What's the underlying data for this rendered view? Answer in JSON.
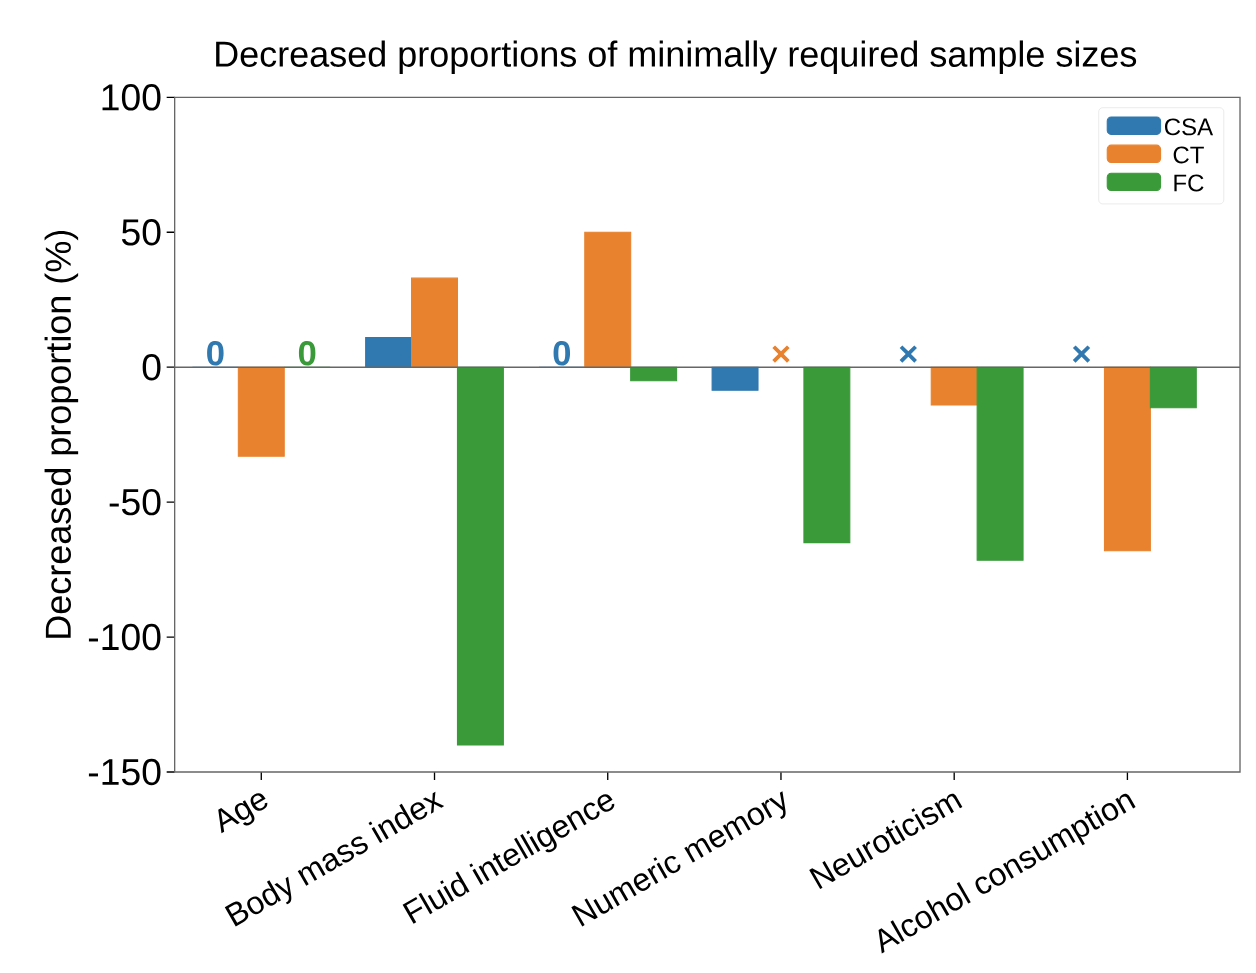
{
  "chart_data": {
    "type": "bar",
    "title": "Decreased proportions of minimally required sample sizes",
    "ylabel": "Decreased proportion (%)",
    "categories": [
      "Age",
      "Body mass index",
      "Fluid intelligence",
      "Numeric memory",
      "Neuroticism",
      "Alcohol consumption"
    ],
    "series": [
      {
        "name": "CSA",
        "color": "#2f78b0",
        "values": [
          0,
          11,
          0,
          -8.5,
          null,
          null
        ],
        "value_labels": [
          "0",
          null,
          "0",
          null,
          "×",
          "×"
        ]
      },
      {
        "name": "CT",
        "color": "#e8822e",
        "values": [
          -33,
          33,
          50,
          null,
          -14,
          -68
        ],
        "value_labels": [
          null,
          null,
          null,
          "×",
          null,
          null
        ]
      },
      {
        "name": "FC",
        "color": "#3a9a3a",
        "values": [
          0,
          -140,
          -5,
          -65,
          -71.5,
          -15
        ],
        "value_labels": [
          "0",
          null,
          null,
          null,
          null,
          null
        ]
      }
    ],
    "ylim": [
      -150,
      100
    ],
    "yticks": [
      -150,
      -100,
      -50,
      0,
      50,
      100
    ],
    "ref_lines": [
      {
        "axis": "y",
        "value": 0
      }
    ],
    "legend": "top right"
  }
}
